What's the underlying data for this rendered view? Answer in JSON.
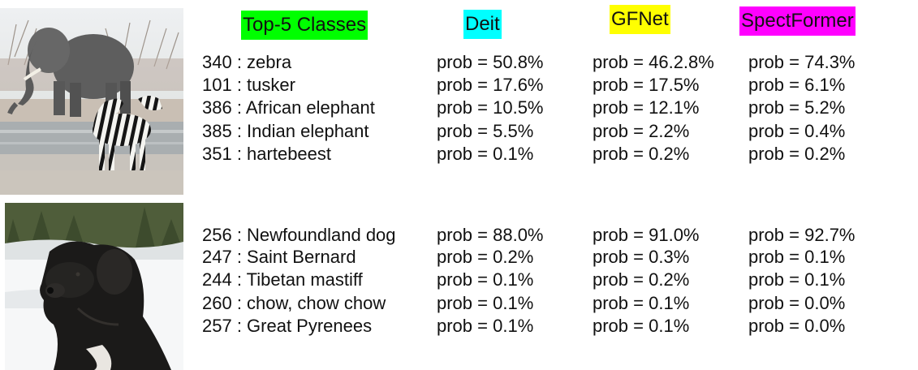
{
  "headers": {
    "classes": {
      "text": "Top-5 Classes",
      "color": "#00ff00"
    },
    "deit": {
      "text": "Deit",
      "color": "#00ffff"
    },
    "gfnet": {
      "text": "GFNet",
      "color": "#ffff00"
    },
    "spectformer": {
      "text": "SpectFormer",
      "color": "#ff00ff"
    }
  },
  "images": [
    {
      "subject": "elephant and zebra at waterhole",
      "icon": "elephant-zebra-photo"
    },
    {
      "subject": "black Newfoundland dog in snow",
      "icon": "newfoundland-dog-photo"
    }
  ],
  "groups": [
    {
      "rows": [
        {
          "label": "340 : zebra",
          "deit": "prob = 50.8%",
          "gfnet": "prob = 46.2.8%",
          "spect": "prob = 74.3%"
        },
        {
          "label": "101 : tusker",
          "deit": "prob = 17.6%",
          "gfnet": "prob = 17.5%",
          "spect": "prob = 6.1%"
        },
        {
          "label": "386 : African elephant",
          "deit": "prob = 10.5%",
          "gfnet": "prob = 12.1%",
          "spect": "prob = 5.2%"
        },
        {
          "label": "385 : Indian elephant",
          "deit": "prob = 5.5%",
          "gfnet": "prob = 2.2%",
          "spect": "prob = 0.4%"
        },
        {
          "label": "351 : hartebeest",
          "deit": "prob = 0.1%",
          "gfnet": "prob = 0.2%",
          "spect": "prob = 0.2%"
        }
      ]
    },
    {
      "rows": [
        {
          "label": "256 : Newfoundland dog",
          "deit": "prob = 88.0%",
          "gfnet": "prob = 91.0%",
          "spect": "prob = 92.7%"
        },
        {
          "label": "247 : Saint Bernard",
          "deit": "prob = 0.2%",
          "gfnet": "prob = 0.3%",
          "spect": "prob = 0.1%"
        },
        {
          "label": "244 : Tibetan mastiff",
          "deit": "prob = 0.1%",
          "gfnet": "prob = 0.2%",
          "spect": "prob = 0.1%"
        },
        {
          "label": "260 : chow, chow chow",
          "deit": "prob = 0.1%",
          "gfnet": "prob = 0.1%",
          "spect": "prob = 0.0%"
        },
        {
          "label": "257 : Great Pyrenees",
          "deit": "prob = 0.1%",
          "gfnet": "prob = 0.1%",
          "spect": "prob = 0.0%"
        }
      ]
    }
  ]
}
